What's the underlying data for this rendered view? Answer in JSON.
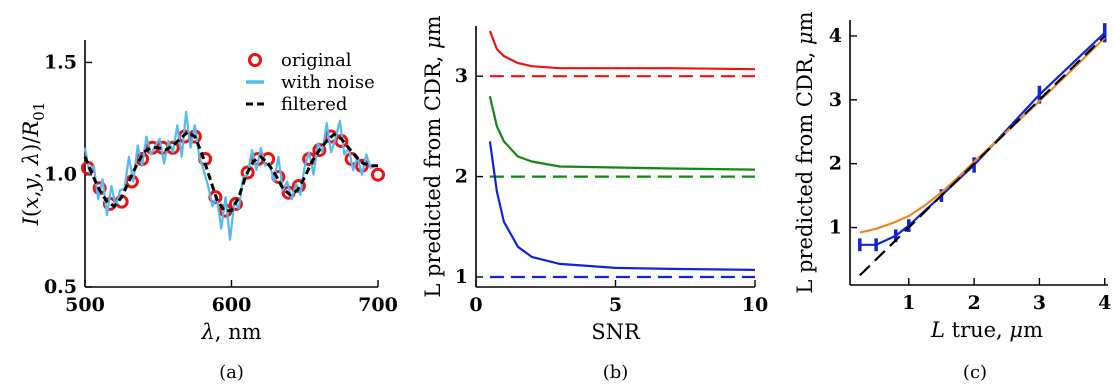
{
  "chart_data": [
    {
      "panel_label": "(a)",
      "type": "line",
      "xlabel": "λ, nm",
      "ylabel": "I(x,y, λ)/R01",
      "xlim": [
        500,
        700
      ],
      "ylim": [
        0.5,
        1.6
      ],
      "xticks": [
        500,
        600,
        700
      ],
      "yticks": [
        0.5,
        1.0,
        1.5
      ],
      "ytick_labels": [
        "0.5",
        "1.0",
        "1.5"
      ],
      "legend_position": "top-right",
      "series": [
        {
          "name": "original",
          "color": "#ee1111",
          "marker": "open-circle",
          "x": [
            502,
            510,
            517,
            525,
            532,
            539,
            546,
            553,
            560,
            568,
            575,
            582,
            589,
            596,
            603,
            611,
            618,
            625,
            632,
            639,
            646,
            653,
            660,
            668,
            675,
            682,
            689,
            700
          ],
          "y": [
            1.03,
            0.94,
            0.87,
            0.88,
            0.97,
            1.07,
            1.12,
            1.12,
            1.12,
            1.17,
            1.17,
            1.07,
            0.9,
            0.84,
            0.87,
            1.01,
            1.07,
            1.07,
            0.99,
            0.92,
            0.95,
            1.07,
            1.11,
            1.17,
            1.15,
            1.07,
            1.04,
            1.0
          ]
        },
        {
          "name": "with noise",
          "color": "#55bbee",
          "x": [
            500,
            503,
            506,
            509,
            512,
            515,
            518,
            521,
            524,
            527,
            530,
            533,
            536,
            539,
            542,
            545,
            548,
            551,
            554,
            557,
            560,
            563,
            566,
            569,
            572,
            575,
            578,
            581,
            584,
            587,
            590,
            593,
            596,
            599,
            602,
            605,
            608,
            611,
            614,
            617,
            620,
            623,
            626,
            629,
            632,
            635,
            638,
            641,
            644,
            647,
            650,
            653,
            656,
            659,
            662,
            665,
            668,
            671,
            674,
            677,
            680,
            683,
            686,
            689,
            692,
            695,
            698
          ],
          "y": [
            1.12,
            1.01,
            1.04,
            0.89,
            0.98,
            0.82,
            0.95,
            0.86,
            0.93,
            0.94,
            1.08,
            0.97,
            1.13,
            1.04,
            1.17,
            1.09,
            1.13,
            1.16,
            1.05,
            1.15,
            1.1,
            1.22,
            1.08,
            1.28,
            1.12,
            1.22,
            1.08,
            1.02,
            0.95,
            0.86,
            0.9,
            0.76,
            0.9,
            0.71,
            0.88,
            0.85,
            0.99,
            1.0,
            1.11,
            1.02,
            1.12,
            1.04,
            1.05,
            0.97,
            1.08,
            0.93,
            0.97,
            0.89,
            0.96,
            0.91,
            1.04,
            1.1,
            1.0,
            1.14,
            1.1,
            1.23,
            1.1,
            1.16,
            1.24,
            1.09,
            1.12,
            1.02,
            1.08,
            1.0,
            1.09,
            1.03,
            1.04
          ]
        },
        {
          "name": "filtered",
          "color": "#000000",
          "style": "dashed",
          "x": [
            500,
            505,
            510,
            515,
            520,
            525,
            530,
            535,
            540,
            545,
            550,
            555,
            560,
            565,
            570,
            575,
            580,
            585,
            590,
            595,
            600,
            605,
            610,
            615,
            620,
            625,
            630,
            635,
            640,
            645,
            650,
            655,
            660,
            665,
            670,
            675,
            680,
            685,
            690,
            695,
            700
          ],
          "y": [
            1.08,
            1.0,
            0.93,
            0.88,
            0.86,
            0.9,
            0.97,
            1.04,
            1.1,
            1.12,
            1.12,
            1.11,
            1.13,
            1.16,
            1.19,
            1.17,
            1.09,
            0.99,
            0.89,
            0.84,
            0.84,
            0.9,
            1.0,
            1.06,
            1.08,
            1.05,
            1.0,
            0.94,
            0.91,
            0.93,
            0.99,
            1.06,
            1.11,
            1.15,
            1.18,
            1.16,
            1.12,
            1.08,
            1.05,
            1.04,
            1.04
          ]
        }
      ]
    },
    {
      "panel_label": "(b)",
      "type": "line",
      "xlabel": "SNR",
      "ylabel": "L predicted from CDR, μm",
      "xlim": [
        0,
        10
      ],
      "ylim": [
        0.9,
        3.5
      ],
      "xticks": [
        0,
        5,
        10
      ],
      "yticks": [
        1,
        2,
        3
      ],
      "series": [
        {
          "color": "#ee1111",
          "x": [
            0.5,
            0.75,
            1,
            1.5,
            2,
            3,
            5,
            7,
            10
          ],
          "y": [
            3.45,
            3.27,
            3.2,
            3.13,
            3.1,
            3.08,
            3.08,
            3.08,
            3.07
          ]
        },
        {
          "color": "#ee1111",
          "style": "dashed",
          "x": [
            0.5,
            10
          ],
          "y": [
            3,
            3
          ]
        },
        {
          "color": "#118811",
          "x": [
            0.5,
            0.75,
            1,
            1.5,
            2,
            3,
            5,
            7,
            10
          ],
          "y": [
            2.8,
            2.5,
            2.35,
            2.2,
            2.15,
            2.1,
            2.09,
            2.08,
            2.07
          ]
        },
        {
          "color": "#118811",
          "style": "dashed",
          "x": [
            0.5,
            10
          ],
          "y": [
            2,
            2
          ]
        },
        {
          "color": "#1122dd",
          "x": [
            0.5,
            0.75,
            1,
            1.5,
            2,
            3,
            5,
            7,
            10
          ],
          "y": [
            2.35,
            1.85,
            1.55,
            1.3,
            1.2,
            1.13,
            1.09,
            1.08,
            1.07
          ]
        },
        {
          "color": "#1122dd",
          "style": "dashed",
          "x": [
            0.5,
            10
          ],
          "y": [
            1,
            1
          ]
        }
      ]
    },
    {
      "panel_label": "(c)",
      "type": "line",
      "xlabel": "L true, μm",
      "ylabel": "L predicted from CDR, μm",
      "xlim": [
        0.1,
        4.05
      ],
      "ylim": [
        0.1,
        4.25
      ],
      "xticks": [
        1,
        2,
        3,
        4
      ],
      "yticks": [
        1,
        2,
        3,
        4
      ],
      "series": [
        {
          "color": "#1122dd",
          "marker": "error-bars",
          "x": [
            0.25,
            0.5,
            0.8,
            1,
            1.5,
            2,
            3,
            4
          ],
          "y": [
            0.73,
            0.73,
            0.87,
            1.03,
            1.5,
            1.98,
            3.08,
            4.05
          ],
          "yerr": [
            0.1,
            0.1,
            0.1,
            0.1,
            0.1,
            0.12,
            0.14,
            0.15
          ]
        },
        {
          "color": "#ee8822",
          "x": [
            0.25,
            0.5,
            0.75,
            1,
            1.25,
            1.5,
            1.75,
            2,
            2.5,
            3,
            3.5,
            4
          ],
          "y": [
            0.92,
            0.98,
            1.07,
            1.18,
            1.35,
            1.55,
            1.78,
            2.03,
            2.5,
            2.98,
            3.47,
            3.97
          ]
        },
        {
          "color": "#000000",
          "style": "dashed",
          "x": [
            0.25,
            4
          ],
          "y": [
            0.25,
            4
          ]
        }
      ]
    }
  ]
}
